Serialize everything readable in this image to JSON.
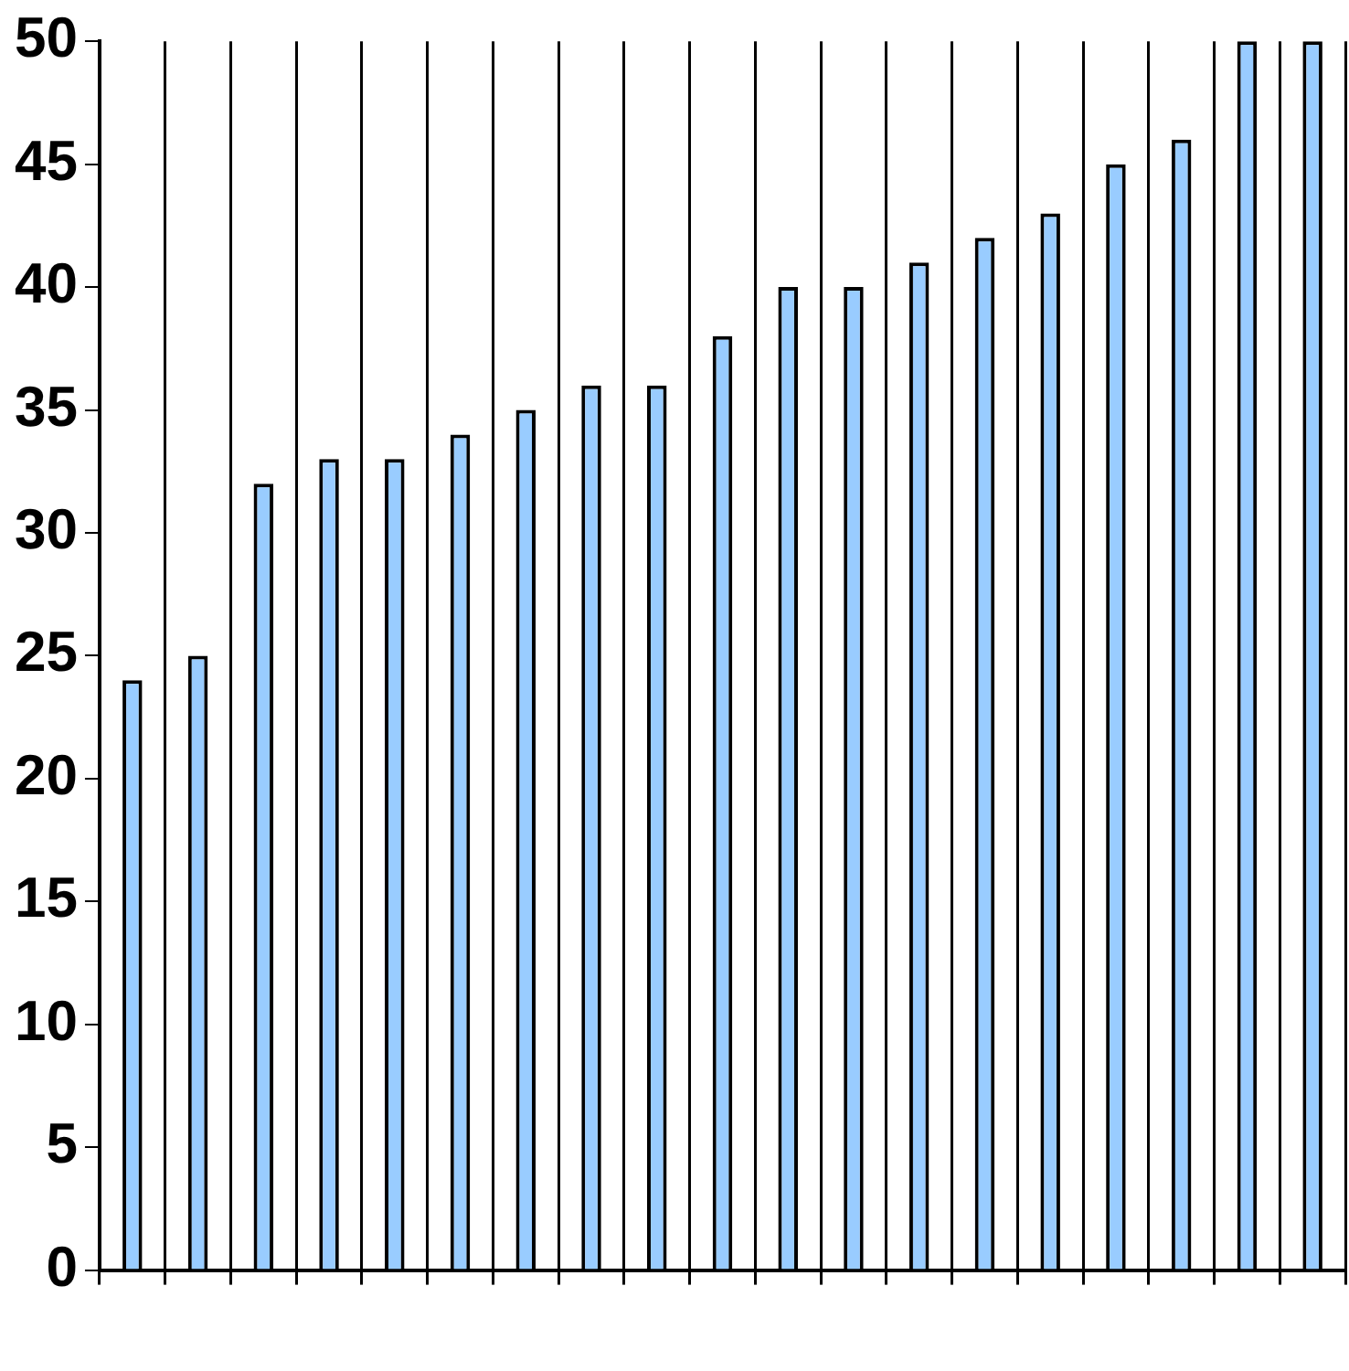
{
  "chart_data": {
    "type": "bar",
    "categories": [
      null,
      null,
      null,
      null,
      null,
      null,
      null,
      null,
      null,
      null,
      null,
      null,
      null,
      null,
      null,
      null,
      null,
      null,
      null
    ],
    "values": [
      24,
      25,
      32,
      33,
      33,
      34,
      35,
      36,
      36,
      38,
      40,
      40,
      41,
      42,
      43,
      45,
      46,
      50,
      50
    ],
    "color": "#99ccff",
    "ylim": [
      0,
      50
    ],
    "yticks": [
      0,
      5,
      10,
      15,
      20,
      25,
      30,
      35,
      40,
      45,
      50
    ],
    "grid": "x",
    "legend": false
  }
}
